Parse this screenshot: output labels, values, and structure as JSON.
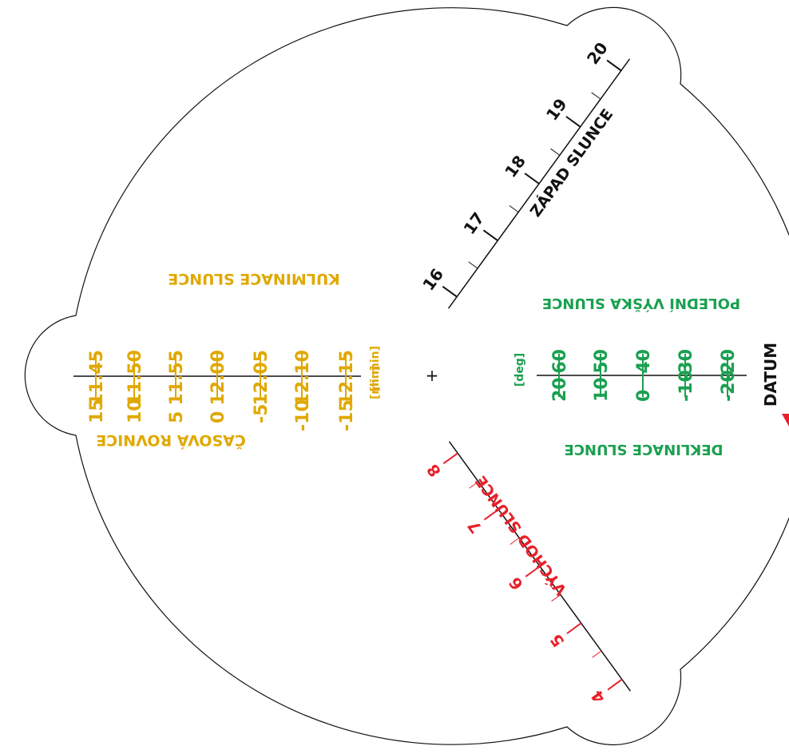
{
  "colors": {
    "outline": "#111111",
    "equation": "#e0a800",
    "declination": "#1aa050",
    "sunrise": "#e8202a",
    "sunset": "#111111",
    "marker": "#e8202a"
  },
  "equation_of_time": {
    "title": "ČASOVÁ ROVNICE",
    "unit": "[min]",
    "values": [
      "15",
      "10",
      "5",
      "0",
      "-5",
      "-10",
      "-15"
    ]
  },
  "culmination": {
    "title": "KULMINACE SLUNCE",
    "unit": "[h.min]",
    "values": [
      "11.45",
      "11.50",
      "11.55",
      "12.00",
      "12.05",
      "12.10",
      "12.15"
    ]
  },
  "declination": {
    "title": "DEKLINACE SLUNCE",
    "unit": "[deg]",
    "values": [
      "20",
      "10",
      "0",
      "-10",
      "-20"
    ]
  },
  "noon_altitude": {
    "title": "POLEDNÍ VÝŠKA SLUNCE",
    "values": [
      "60",
      "50",
      "40",
      "-30",
      "-20"
    ]
  },
  "sunset": {
    "title": "ZÁPAD SLUNCE",
    "hours": [
      "16",
      "17",
      "18",
      "19",
      "20"
    ]
  },
  "sunrise": {
    "title": "VÝCHOD SLUNCE",
    "hours": [
      "4",
      "5",
      "6",
      "7",
      "8"
    ]
  },
  "datum_label": "DATUM",
  "center_mark": "+"
}
